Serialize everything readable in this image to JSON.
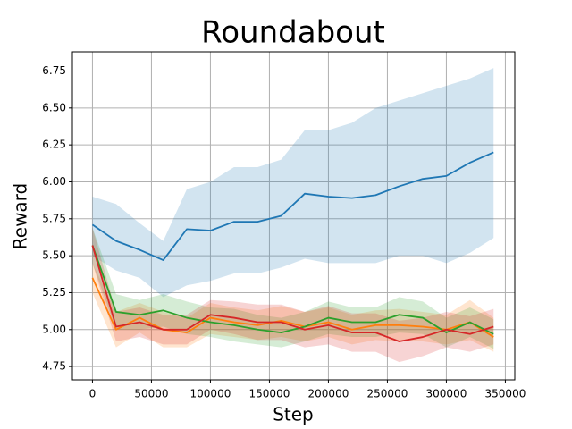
{
  "chart_data": {
    "type": "line",
    "title": "Roundabout",
    "x_label": "Step",
    "y_label": "Reward",
    "x": [
      0,
      20000,
      40000,
      60000,
      80000,
      100000,
      120000,
      140000,
      160000,
      180000,
      200000,
      220000,
      240000,
      260000,
      280000,
      300000,
      320000,
      340000
    ],
    "series": [
      {
        "color": "#1f77b4",
        "values": [
          5.71,
          5.6,
          5.54,
          5.47,
          5.68,
          5.67,
          5.73,
          5.73,
          5.77,
          5.92,
          5.9,
          5.89,
          5.91,
          5.97,
          6.02,
          6.04,
          6.13,
          6.2
        ],
        "lower": [
          5.5,
          5.4,
          5.35,
          5.22,
          5.3,
          5.33,
          5.38,
          5.38,
          5.42,
          5.48,
          5.45,
          5.45,
          5.45,
          5.5,
          5.5,
          5.45,
          5.52,
          5.62
        ],
        "upper": [
          5.9,
          5.85,
          5.72,
          5.6,
          5.95,
          6.0,
          6.1,
          6.1,
          6.15,
          6.35,
          6.35,
          6.4,
          6.5,
          6.55,
          6.6,
          6.65,
          6.7,
          6.77
        ]
      },
      {
        "color": "#ff7f0e",
        "values": [
          5.35,
          5.0,
          5.08,
          5.0,
          4.98,
          5.08,
          5.05,
          5.03,
          5.06,
          5.02,
          5.05,
          5.0,
          5.03,
          5.03,
          5.02,
          5.0,
          5.05,
          4.95
        ],
        "lower": [
          5.25,
          4.88,
          4.98,
          4.88,
          4.88,
          4.97,
          4.95,
          4.93,
          4.95,
          4.92,
          4.95,
          4.9,
          4.93,
          4.92,
          4.92,
          4.9,
          4.93,
          4.85
        ],
        "upper": [
          5.45,
          5.12,
          5.18,
          5.12,
          5.08,
          5.18,
          5.15,
          5.13,
          5.16,
          5.12,
          5.15,
          5.1,
          5.13,
          5.14,
          5.12,
          5.1,
          5.2,
          5.08
        ]
      },
      {
        "color": "#2ca02c",
        "values": [
          5.57,
          5.12,
          5.1,
          5.13,
          5.08,
          5.05,
          5.03,
          5.0,
          4.98,
          5.02,
          5.08,
          5.05,
          5.05,
          5.1,
          5.08,
          4.98,
          5.05,
          4.97
        ],
        "lower": [
          5.45,
          5.0,
          5.0,
          5.02,
          4.97,
          4.95,
          4.92,
          4.9,
          4.88,
          4.92,
          4.97,
          4.95,
          4.95,
          4.98,
          4.97,
          4.88,
          4.95,
          4.87
        ],
        "upper": [
          5.69,
          5.24,
          5.2,
          5.24,
          5.19,
          5.15,
          5.14,
          5.1,
          5.08,
          5.12,
          5.19,
          5.15,
          5.15,
          5.22,
          5.19,
          5.08,
          5.15,
          5.07
        ]
      },
      {
        "color": "#d62728",
        "values": [
          5.57,
          5.02,
          5.05,
          5.0,
          5.0,
          5.1,
          5.08,
          5.05,
          5.05,
          5.0,
          5.03,
          4.98,
          4.98,
          4.92,
          4.95,
          5.0,
          4.97,
          5.02
        ],
        "lower": [
          5.45,
          4.92,
          4.95,
          4.9,
          4.9,
          5.0,
          4.97,
          4.93,
          4.93,
          4.88,
          4.9,
          4.85,
          4.85,
          4.78,
          4.82,
          4.88,
          4.85,
          4.9
        ],
        "upper": [
          5.69,
          5.12,
          5.15,
          5.1,
          5.1,
          5.2,
          5.19,
          5.17,
          5.17,
          5.12,
          5.16,
          5.11,
          5.11,
          5.06,
          5.08,
          5.12,
          5.09,
          5.14
        ]
      }
    ],
    "xlim": [
      -17000,
      358000
    ],
    "xticks": [
      0,
      50000,
      100000,
      150000,
      200000,
      250000,
      300000,
      350000
    ],
    "ylim": [
      4.66,
      6.88
    ],
    "yticks": [
      4.75,
      {
        "value": 5,
        "label": "5.00"
      },
      5.25,
      {
        "value": 5.5,
        "label": "5.50"
      },
      5.75,
      {
        "value": 6,
        "label": "6.00"
      },
      6.25,
      {
        "value": 6.5,
        "label": "6.50"
      },
      6.75
    ],
    "grid": true
  }
}
